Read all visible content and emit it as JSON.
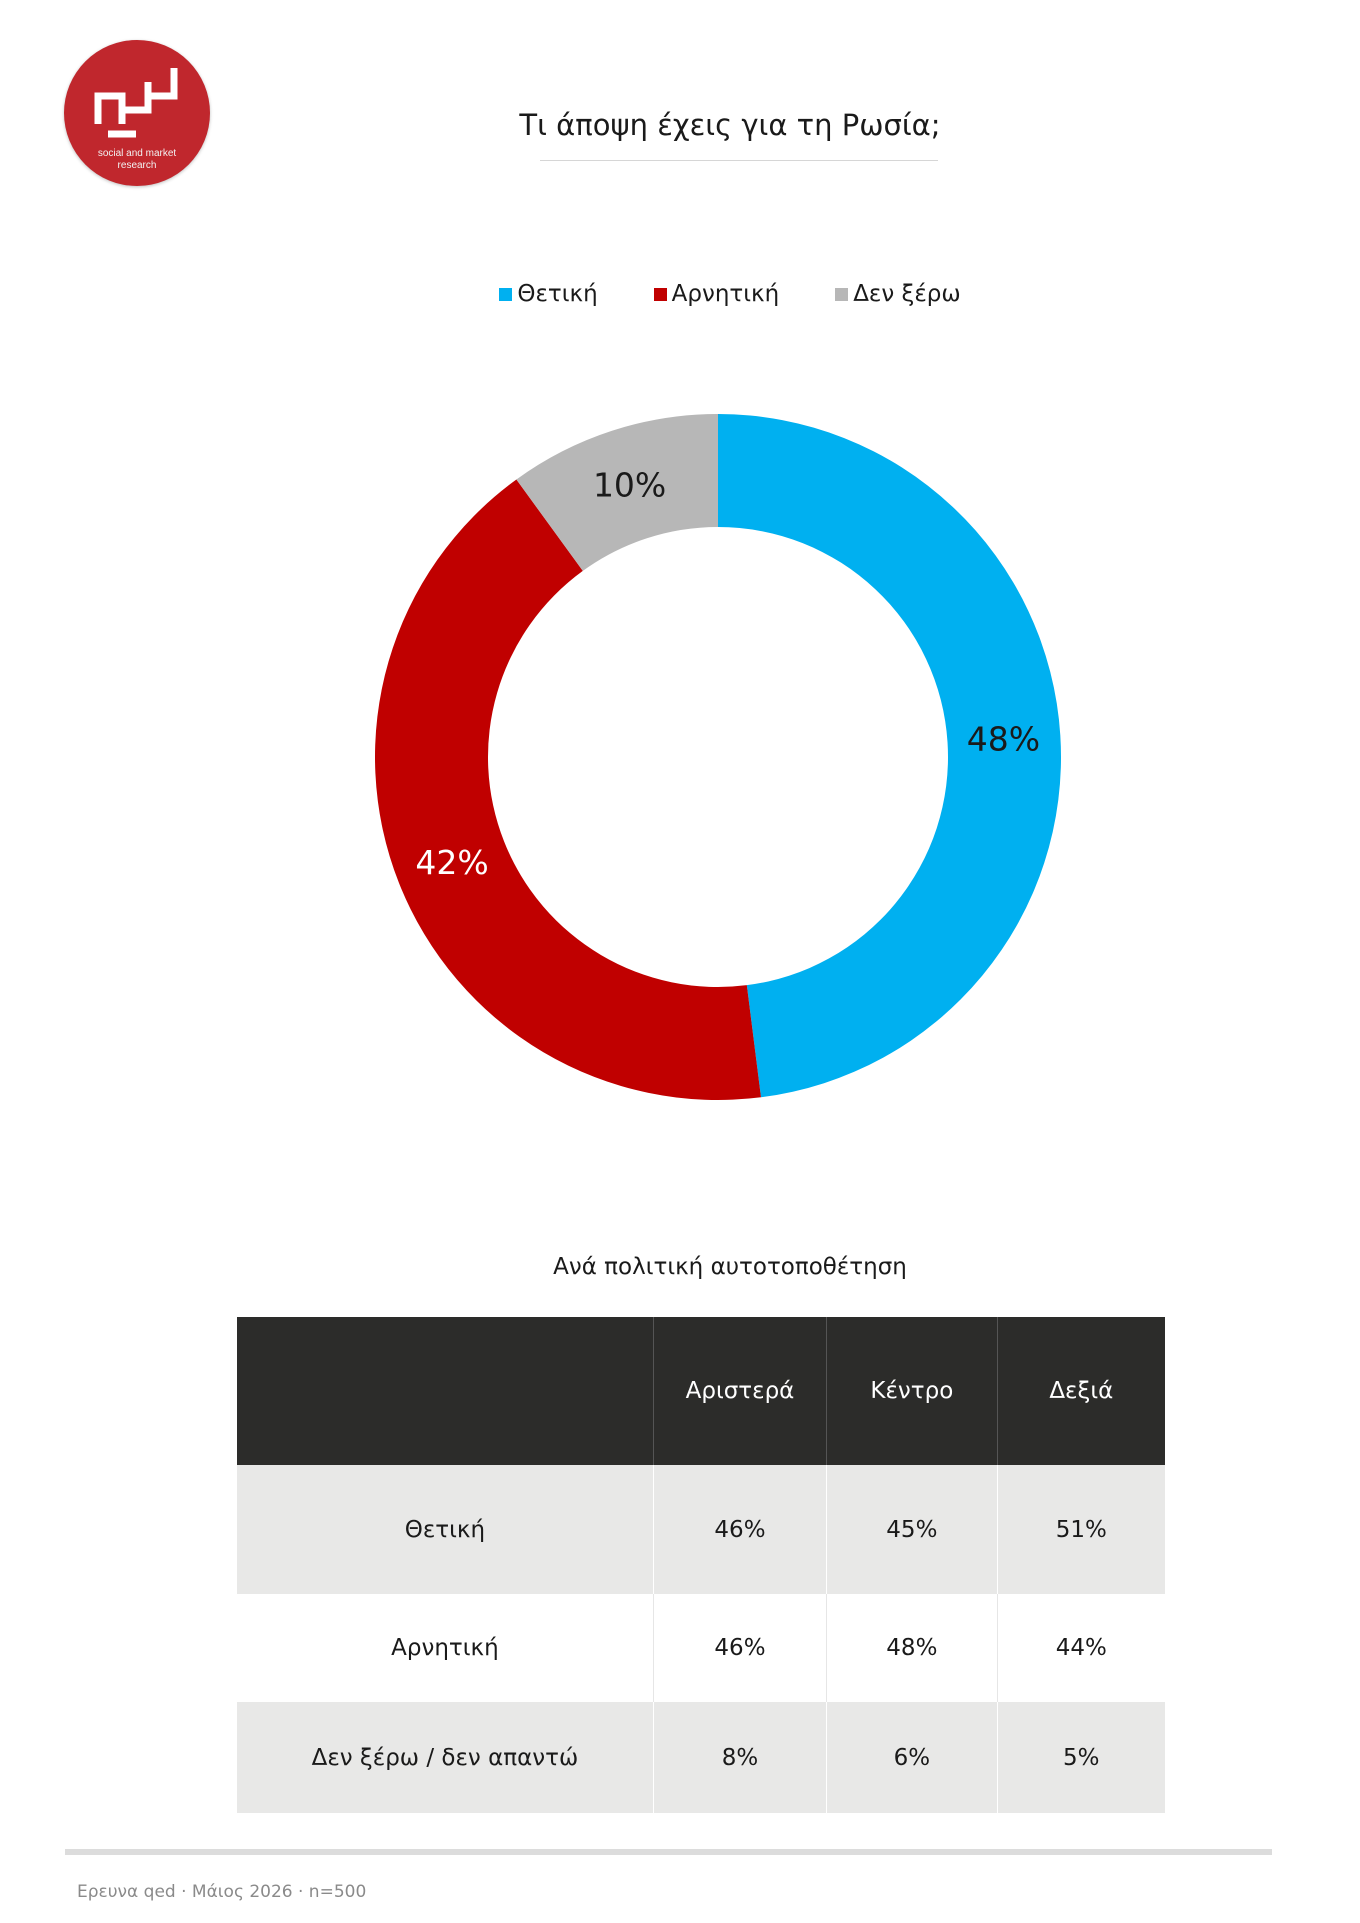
{
  "brand": {
    "logo_line1": "social and market",
    "logo_line2": "research",
    "color": "#c0272d"
  },
  "title": "Τι άποψη έχεις για τη Ρωσία;",
  "chart_data": {
    "type": "pie",
    "title": "Τι άποψη έχεις για τη Ρωσία;",
    "legend_position": "top",
    "slices": [
      {
        "label": "Θετική",
        "value": 48,
        "display": "48%",
        "color": "#00b0f0"
      },
      {
        "label": "Αρνητική",
        "value": 42,
        "display": "42%",
        "color": "#c00000"
      },
      {
        "label": "Δεν ξέρω",
        "value": 10,
        "display": "10%",
        "color": "#b7b7b7"
      }
    ]
  },
  "breakdown": {
    "subtitle": "Ανά πολιτική αυτοτοποθέτηση",
    "columns": [
      "",
      "Αριστερά",
      "Κέντρο",
      "Δεξιά"
    ],
    "rows": [
      {
        "label": "Θετική",
        "values": [
          "46%",
          "45%",
          "51%"
        ]
      },
      {
        "label": "Αρνητική",
        "values": [
          "46%",
          "48%",
          "44%"
        ]
      },
      {
        "label": "Δεν ξέρω / δεν απαντώ",
        "values": [
          "8%",
          "6%",
          "5%"
        ]
      }
    ]
  },
  "footer": {
    "note": "Ερευνα qed · Μάιος 2026 · n=500"
  }
}
